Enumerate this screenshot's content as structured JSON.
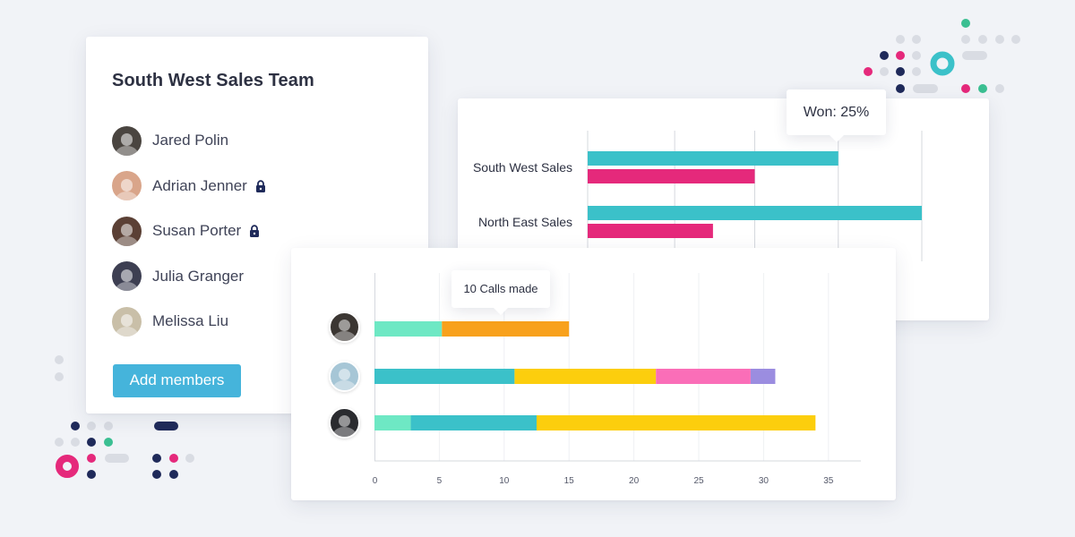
{
  "team": {
    "title": "South West Sales Team",
    "members": [
      {
        "name": "Jared Polin",
        "locked": false,
        "avatar_color": "#4a4540",
        "avatar_icon": "person-avatar-icon"
      },
      {
        "name": "Adrian Jenner",
        "locked": true,
        "avatar_color": "#d9a58a",
        "avatar_icon": "person-avatar-icon"
      },
      {
        "name": "Susan Porter",
        "locked": true,
        "avatar_color": "#5b4035",
        "avatar_icon": "person-avatar-icon"
      },
      {
        "name": "Julia Granger",
        "locked": false,
        "avatar_color": "#3d3f52",
        "avatar_icon": "person-avatar-icon"
      },
      {
        "name": "Melissa Liu",
        "locked": false,
        "avatar_color": "#c9bfa8",
        "avatar_icon": "person-avatar-icon"
      }
    ],
    "lock_icon": "lock-icon",
    "add_members_label": "Add members"
  },
  "sales_tooltip": "Won: 25%",
  "calls_tooltip": "10 Calls made",
  "colors": {
    "teal": "#3bc1c9",
    "pink": "#e5297b",
    "mint": "#6ee8c4",
    "orange": "#f8a11c",
    "yellow": "#fcce0d",
    "rose": "#fa6eb8",
    "lavender": "#9b8de0",
    "button": "#45b4db",
    "navy": "#1f2a5a",
    "green": "#3bbf92"
  },
  "chart_data": [
    {
      "type": "bar",
      "orientation": "horizontal",
      "categories": [
        "South West Sales",
        "North East Sales"
      ],
      "series": [
        {
          "color": "#3bc1c9",
          "values": [
            36,
            48
          ]
        },
        {
          "color": "#e5297b",
          "values": [
            24,
            18
          ]
        }
      ],
      "xlim": [
        0,
        48
      ],
      "grid": true,
      "tick_labels_shown": false
    },
    {
      "type": "bar",
      "orientation": "horizontal",
      "stacked": true,
      "categories": [
        "person-1",
        "person-2",
        "person-3"
      ],
      "category_avatar_colors": [
        "#3b3632",
        "#a6c6d6",
        "#2a2b2f"
      ],
      "rows": [
        [
          {
            "color": "#6ee8c4",
            "value": 5.2
          },
          {
            "color": "#f8a11c",
            "value": 9.8
          }
        ],
        [
          {
            "color": "#3bc1c9",
            "value": 10.8
          },
          {
            "color": "#fcce0d",
            "value": 10.9
          },
          {
            "color": "#fa6eb8",
            "value": 7.3
          },
          {
            "color": "#9b8de0",
            "value": 1.9
          }
        ],
        [
          {
            "color": "#6ee8c4",
            "value": 2.8
          },
          {
            "color": "#3bc1c9",
            "value": 9.7
          },
          {
            "color": "#fcce0d",
            "value": 21.5
          }
        ]
      ],
      "xticks": [
        "0",
        "5",
        "10",
        "15",
        "20",
        "25",
        "30",
        "35"
      ],
      "xlim": [
        0,
        37.5
      ],
      "grid": true
    }
  ]
}
